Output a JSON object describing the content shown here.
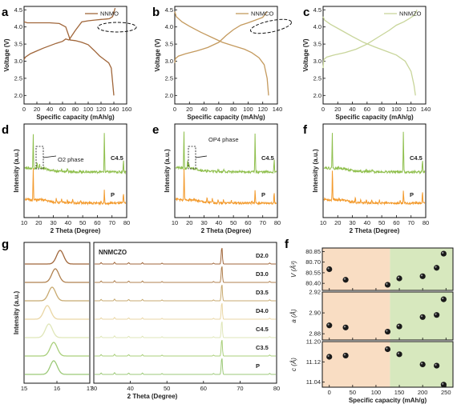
{
  "chart_data": [
    {
      "panel": "a",
      "type": "line",
      "xlabel": "Specific capacity (mAh/g)",
      "ylabel": "Voltage (V)",
      "xlim": [
        0,
        160
      ],
      "ylim": [
        1.75,
        4.6
      ],
      "xticks": [
        "0",
        "20",
        "40",
        "60",
        "80",
        "100",
        "120",
        "140",
        "160"
      ],
      "yticks": [
        "2.0",
        "2.5",
        "3.0",
        "3.5",
        "4.0",
        "4.5"
      ],
      "legend": "NNMO",
      "color": "#a0663a",
      "series": [
        {
          "name": "NNMO",
          "label": "charge",
          "x": [
            0,
            2,
            10,
            20,
            30,
            40,
            50,
            60,
            65,
            70,
            80,
            90,
            100,
            110,
            120,
            128,
            133,
            138,
            142
          ],
          "y": [
            3.05,
            3.12,
            3.22,
            3.3,
            3.38,
            3.45,
            3.52,
            3.58,
            3.65,
            3.62,
            3.9,
            4.15,
            4.18,
            4.2,
            4.22,
            4.23,
            4.24,
            4.3,
            4.55
          ]
        },
        {
          "name": "NNMO",
          "label": "discharge",
          "x": [
            0,
            5,
            20,
            40,
            55,
            65,
            72,
            80,
            90,
            100,
            110,
            118,
            125,
            132,
            136,
            138,
            140
          ],
          "y": [
            4.15,
            4.12,
            4.12,
            4.12,
            4.1,
            4.0,
            3.62,
            3.6,
            3.55,
            3.48,
            3.3,
            3.15,
            3.05,
            2.95,
            2.8,
            2.4,
            2.0
          ]
        }
      ]
    },
    {
      "panel": "b",
      "type": "line",
      "xlabel": "Specific capacity (mAh/g)",
      "ylabel": "Voltage (V)",
      "xlim": [
        0,
        140
      ],
      "ylim": [
        1.75,
        4.6
      ],
      "xticks": [
        "0",
        "20",
        "40",
        "60",
        "80",
        "100",
        "120",
        "140"
      ],
      "yticks": [
        "2.0",
        "2.5",
        "3.0",
        "3.5",
        "4.0",
        "4.5"
      ],
      "legend": "NNMCO",
      "color": "#c49a5e",
      "series": [
        {
          "name": "NNMCO",
          "label": "charge",
          "x": [
            0,
            1,
            5,
            15,
            30,
            45,
            60,
            70,
            80,
            90,
            100,
            110,
            120,
            126
          ],
          "y": [
            2.95,
            3.08,
            3.15,
            3.22,
            3.3,
            3.4,
            3.55,
            3.75,
            3.92,
            4.05,
            4.12,
            4.2,
            4.28,
            4.45
          ]
        },
        {
          "name": "NNMCO",
          "label": "discharge",
          "x": [
            0,
            2,
            10,
            20,
            35,
            50,
            65,
            80,
            95,
            105,
            115,
            122,
            126,
            128
          ],
          "y": [
            4.45,
            4.3,
            4.15,
            4.02,
            3.85,
            3.7,
            3.55,
            3.45,
            3.35,
            3.25,
            3.1,
            2.9,
            2.5,
            2.0
          ]
        }
      ]
    },
    {
      "panel": "c",
      "type": "line",
      "xlabel": "Specific capacity (mAh/g)",
      "ylabel": "Voltage (V)",
      "xlim": [
        0,
        140
      ],
      "ylim": [
        1.75,
        4.6
      ],
      "xticks": [
        "0",
        "20",
        "40",
        "60",
        "80",
        "100",
        "120",
        "140"
      ],
      "yticks": [
        "2.0",
        "2.5",
        "3.0",
        "3.5",
        "4.0",
        "4.5"
      ],
      "legend": "NNMZO",
      "color": "#c8d59a",
      "series": [
        {
          "name": "NNMZO",
          "label": "charge",
          "x": [
            0,
            1,
            5,
            15,
            30,
            45,
            60,
            75,
            90,
            100,
            110,
            118,
            125,
            128
          ],
          "y": [
            2.8,
            3.05,
            3.12,
            3.18,
            3.25,
            3.35,
            3.5,
            3.7,
            3.9,
            4.05,
            4.15,
            4.25,
            4.35,
            4.5
          ]
        },
        {
          "name": "NNMZO",
          "label": "discharge",
          "x": [
            0,
            2,
            10,
            25,
            40,
            55,
            70,
            85,
            100,
            112,
            120,
            124,
            126
          ],
          "y": [
            4.3,
            4.2,
            4.08,
            3.9,
            3.72,
            3.55,
            3.42,
            3.3,
            3.18,
            3.0,
            2.7,
            2.3,
            2.0
          ]
        }
      ]
    },
    {
      "panel": "d",
      "type": "line",
      "xlabel": "2 Theta (Degree)",
      "ylabel": "Intensity (a.u.)",
      "xlim": [
        10,
        80
      ],
      "xticks": [
        "10",
        "20",
        "30",
        "40",
        "50",
        "60",
        "70",
        "80"
      ],
      "annotation": "O2 phase",
      "series": [
        {
          "name": "C4.5",
          "color": "#8fbf4d",
          "peaks": [
            [
              15.8,
              0.9
            ],
            [
              18.5,
              0.15
            ],
            [
              20.2,
              0.08
            ],
            [
              35.5,
              0.05
            ],
            [
              39.5,
              0.05
            ],
            [
              43.5,
              0.05
            ],
            [
              65.1,
              1.0
            ],
            [
              78.3,
              0.3
            ]
          ]
        },
        {
          "name": "P",
          "color": "#f39a2c",
          "peaks": [
            [
              15.8,
              0.9
            ],
            [
              31.8,
              0.12
            ],
            [
              35.5,
              0.12
            ],
            [
              39.4,
              0.1
            ],
            [
              43.2,
              0.1
            ],
            [
              48.6,
              0.08
            ],
            [
              62.8,
              0.06
            ],
            [
              65.1,
              0.35
            ],
            [
              78.3,
              0.3
            ]
          ]
        }
      ]
    },
    {
      "panel": "e",
      "type": "line",
      "xlabel": "2 Theta (Degree)",
      "ylabel": "Intensity (a.u.)",
      "xlim": [
        10,
        80
      ],
      "xticks": [
        "10",
        "20",
        "30",
        "40",
        "50",
        "60",
        "70",
        "80"
      ],
      "annotation": "OP4 phase",
      "series": [
        {
          "name": "C4.5",
          "color": "#8fbf4d",
          "peaks": [
            [
              15.8,
              0.95
            ],
            [
              18.3,
              0.2
            ],
            [
              19.2,
              0.1
            ],
            [
              35.5,
              0.05
            ],
            [
              39.5,
              0.05
            ],
            [
              43.5,
              0.05
            ],
            [
              65.1,
              1.0
            ],
            [
              78.3,
              0.3
            ]
          ]
        },
        {
          "name": "P",
          "color": "#f39a2c",
          "peaks": [
            [
              15.9,
              0.9
            ],
            [
              31.8,
              0.12
            ],
            [
              35.5,
              0.12
            ],
            [
              39.4,
              0.1
            ],
            [
              43.2,
              0.1
            ],
            [
              48.6,
              0.08
            ],
            [
              62.8,
              0.06
            ],
            [
              65.1,
              0.35
            ],
            [
              78.3,
              0.3
            ]
          ]
        }
      ]
    },
    {
      "panel": "f",
      "type": "line",
      "xlabel": "2 Theta (Degree)",
      "ylabel": "Intensity (a.u.)",
      "xlim": [
        10,
        80
      ],
      "xticks": [
        "10",
        "20",
        "30",
        "40",
        "50",
        "60",
        "70",
        "80"
      ],
      "series": [
        {
          "name": "C4.5",
          "color": "#8fbf4d",
          "peaks": [
            [
              15.8,
              0.9
            ],
            [
              35.5,
              0.05
            ],
            [
              39.5,
              0.05
            ],
            [
              43.5,
              0.05
            ],
            [
              65.1,
              1.0
            ],
            [
              78.3,
              0.3
            ]
          ]
        },
        {
          "name": "P",
          "color": "#f39a2c",
          "peaks": [
            [
              15.9,
              0.9
            ],
            [
              31.8,
              0.12
            ],
            [
              35.5,
              0.12
            ],
            [
              39.4,
              0.1
            ],
            [
              43.2,
              0.1
            ],
            [
              48.6,
              0.08
            ],
            [
              62.8,
              0.06
            ],
            [
              65.1,
              0.35
            ],
            [
              78.3,
              0.3
            ]
          ]
        }
      ]
    },
    {
      "panel": "g",
      "type": "line",
      "xlabel": "2 Theta (Degree)",
      "ylabel": "Intensity (a.u.)",
      "inset_label": "NNMCZO",
      "xlim_left": [
        15,
        17
      ],
      "xticks_left": [
        "15",
        "16",
        "17"
      ],
      "xlim_right": [
        30,
        80
      ],
      "xticks_right": [
        "30",
        "40",
        "50",
        "60",
        "70",
        "80"
      ],
      "series": [
        {
          "name": "D2.0",
          "color": "#a0663a",
          "peak_left": 16.1
        },
        {
          "name": "D3.0",
          "color": "#b0814f",
          "peak_left": 15.95
        },
        {
          "name": "D3.5",
          "color": "#c8aa70",
          "peak_left": 15.85
        },
        {
          "name": "D4.0",
          "color": "#ead6a4",
          "peak_left": 15.7
        },
        {
          "name": "C4.5",
          "color": "#dfe6b8",
          "peak_left": 15.75
        },
        {
          "name": "C3.5",
          "color": "#a9cf7a",
          "peak_left": 15.9
        },
        {
          "name": "P",
          "color": "#9cc978",
          "peak_left": 15.9
        }
      ],
      "right_peaks": [
        [
          31.8,
          0.08
        ],
        [
          35.5,
          0.1
        ],
        [
          39.4,
          0.08
        ],
        [
          43.2,
          0.08
        ],
        [
          48.6,
          0.05
        ],
        [
          62.8,
          0.05
        ],
        [
          65.1,
          1.0
        ],
        [
          78.3,
          0.06
        ]
      ]
    },
    {
      "panel": "f",
      "type": "scatter",
      "xlabel": "Specific capacity (mAh/g)",
      "xlim": [
        -15,
        265
      ],
      "xticks": [
        "0",
        "50",
        "100",
        "150",
        "200",
        "250"
      ],
      "shade_split": 130,
      "shade_left": "#f9ddc3",
      "shade_right": "#d7e8be",
      "subplots": [
        {
          "ylabel": "V (Å³)",
          "ylim": [
            80.3,
            80.9
          ],
          "yticks": [
            "80.40",
            "80.55",
            "80.70",
            "80.85"
          ],
          "x": [
            0,
            35,
            125,
            150,
            200,
            230,
            245
          ],
          "y": [
            80.6,
            80.45,
            80.38,
            80.47,
            80.5,
            80.62,
            80.82
          ]
        },
        {
          "ylabel": "a (Å)",
          "ylim": [
            2.874,
            2.92
          ],
          "yticks": [
            "2.88",
            "2.90",
            "2.92"
          ],
          "x": [
            0,
            35,
            125,
            150,
            200,
            230,
            245
          ],
          "y": [
            2.888,
            2.886,
            2.882,
            2.887,
            2.896,
            2.898,
            2.913
          ]
        },
        {
          "ylabel": "c (Å)",
          "ylim": [
            11.02,
            11.2
          ],
          "yticks": [
            "11.04",
            "11.12",
            "11.20"
          ],
          "x": [
            0,
            35,
            125,
            150,
            200,
            230,
            245
          ],
          "y": [
            11.14,
            11.145,
            11.17,
            11.15,
            11.11,
            11.105,
            11.03
          ]
        }
      ]
    }
  ],
  "panel_labels": [
    "a",
    "b",
    "c",
    "d",
    "e",
    "f",
    "g",
    "f"
  ]
}
